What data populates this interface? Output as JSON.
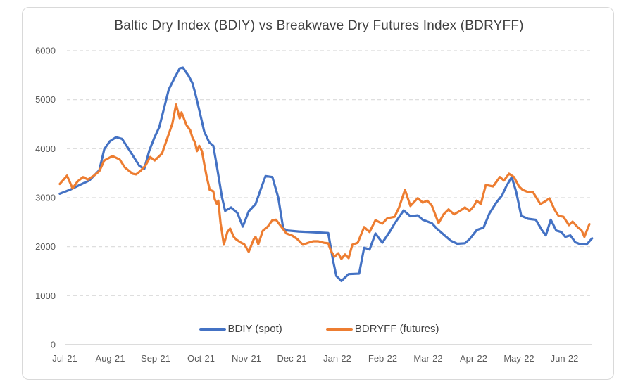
{
  "chart_data": {
    "type": "line",
    "title": "Baltic Dry Index (BDIY) vs Breakwave Dry Futures Index (BDRYFF)",
    "categories": [
      "Jul-21",
      "Aug-21",
      "Sep-21",
      "Oct-21",
      "Nov-21",
      "Dec-21",
      "Jan-22",
      "Feb-22",
      "Mar-22",
      "Apr-22",
      "May-22",
      "Jun-22"
    ],
    "x_unit": "months since Jul-2021 (fractional = weeks within month)",
    "ylim": [
      0,
      6000
    ],
    "yticks": [
      0,
      1000,
      2000,
      3000,
      4000,
      5000,
      6000
    ],
    "grid": "horizontal-dashed",
    "legend_position": "bottom-center",
    "series": [
      {
        "name": "BDIY (spot)",
        "color": "#4472C4",
        "points": [
          [
            -0.11,
            3080
          ],
          [
            0.11,
            3160
          ],
          [
            0.33,
            3260
          ],
          [
            0.54,
            3350
          ],
          [
            0.76,
            3560
          ],
          [
            0.87,
            3990
          ],
          [
            0.99,
            4150
          ],
          [
            1.13,
            4235
          ],
          [
            1.26,
            4200
          ],
          [
            1.43,
            3960
          ],
          [
            1.64,
            3650
          ],
          [
            1.75,
            3590
          ],
          [
            1.86,
            3960
          ],
          [
            1.97,
            4220
          ],
          [
            2.08,
            4440
          ],
          [
            2.29,
            5210
          ],
          [
            2.42,
            5450
          ],
          [
            2.53,
            5640
          ],
          [
            2.6,
            5655
          ],
          [
            2.73,
            5480
          ],
          [
            2.81,
            5340
          ],
          [
            2.87,
            5140
          ],
          [
            2.96,
            4790
          ],
          [
            3.07,
            4350
          ],
          [
            3.18,
            4130
          ],
          [
            3.27,
            4060
          ],
          [
            3.35,
            3630
          ],
          [
            3.46,
            3010
          ],
          [
            3.53,
            2730
          ],
          [
            3.66,
            2800
          ],
          [
            3.8,
            2690
          ],
          [
            3.92,
            2410
          ],
          [
            4.05,
            2720
          ],
          [
            4.2,
            2870
          ],
          [
            4.31,
            3160
          ],
          [
            4.42,
            3440
          ],
          [
            4.57,
            3420
          ],
          [
            4.7,
            3000
          ],
          [
            4.81,
            2370
          ],
          [
            4.91,
            2330
          ],
          [
            5.15,
            2310
          ],
          [
            5.36,
            2300
          ],
          [
            5.58,
            2290
          ],
          [
            5.8,
            2280
          ],
          [
            5.91,
            1700
          ],
          [
            5.98,
            1400
          ],
          [
            6.09,
            1300
          ],
          [
            6.25,
            1440
          ],
          [
            6.48,
            1450
          ],
          [
            6.59,
            1980
          ],
          [
            6.71,
            1940
          ],
          [
            6.84,
            2270
          ],
          [
            6.99,
            2080
          ],
          [
            7.15,
            2300
          ],
          [
            7.26,
            2470
          ],
          [
            7.46,
            2740
          ],
          [
            7.61,
            2620
          ],
          [
            7.77,
            2640
          ],
          [
            7.88,
            2550
          ],
          [
            8.08,
            2480
          ],
          [
            8.19,
            2370
          ],
          [
            8.34,
            2250
          ],
          [
            8.5,
            2120
          ],
          [
            8.64,
            2060
          ],
          [
            8.81,
            2070
          ],
          [
            8.91,
            2150
          ],
          [
            9.07,
            2340
          ],
          [
            9.22,
            2390
          ],
          [
            9.35,
            2680
          ],
          [
            9.5,
            2900
          ],
          [
            9.63,
            3050
          ],
          [
            9.72,
            3230
          ],
          [
            9.84,
            3420
          ],
          [
            9.94,
            3115
          ],
          [
            10.05,
            2630
          ],
          [
            10.2,
            2570
          ],
          [
            10.37,
            2550
          ],
          [
            10.51,
            2330
          ],
          [
            10.59,
            2230
          ],
          [
            10.7,
            2550
          ],
          [
            10.82,
            2330
          ],
          [
            10.93,
            2300
          ],
          [
            11.02,
            2200
          ],
          [
            11.13,
            2230
          ],
          [
            11.24,
            2090
          ],
          [
            11.35,
            2050
          ],
          [
            11.49,
            2045
          ],
          [
            11.61,
            2170
          ]
        ]
      },
      {
        "name": "BDRYFF (futures)",
        "color": "#ED7D31",
        "points": [
          [
            -0.11,
            3280
          ],
          [
            0.05,
            3450
          ],
          [
            0.17,
            3190
          ],
          [
            0.28,
            3330
          ],
          [
            0.4,
            3420
          ],
          [
            0.51,
            3370
          ],
          [
            0.64,
            3450
          ],
          [
            0.76,
            3540
          ],
          [
            0.87,
            3760
          ],
          [
            1.05,
            3850
          ],
          [
            1.21,
            3780
          ],
          [
            1.32,
            3620
          ],
          [
            1.49,
            3490
          ],
          [
            1.57,
            3475
          ],
          [
            1.67,
            3550
          ],
          [
            1.78,
            3660
          ],
          [
            1.88,
            3830
          ],
          [
            1.98,
            3760
          ],
          [
            2.14,
            3900
          ],
          [
            2.29,
            4300
          ],
          [
            2.37,
            4520
          ],
          [
            2.45,
            4900
          ],
          [
            2.53,
            4620
          ],
          [
            2.57,
            4740
          ],
          [
            2.68,
            4480
          ],
          [
            2.76,
            4380
          ],
          [
            2.81,
            4230
          ],
          [
            2.87,
            4120
          ],
          [
            2.91,
            3950
          ],
          [
            2.96,
            4060
          ],
          [
            3.02,
            3950
          ],
          [
            3.07,
            3690
          ],
          [
            3.12,
            3450
          ],
          [
            3.19,
            3160
          ],
          [
            3.27,
            3130
          ],
          [
            3.3,
            2970
          ],
          [
            3.35,
            2870
          ],
          [
            3.38,
            2940
          ],
          [
            3.43,
            2480
          ],
          [
            3.46,
            2300
          ],
          [
            3.5,
            2040
          ],
          [
            3.58,
            2300
          ],
          [
            3.64,
            2370
          ],
          [
            3.72,
            2200
          ],
          [
            3.77,
            2150
          ],
          [
            3.88,
            2080
          ],
          [
            3.95,
            2050
          ],
          [
            4.05,
            1895
          ],
          [
            4.16,
            2150
          ],
          [
            4.2,
            2200
          ],
          [
            4.26,
            2050
          ],
          [
            4.36,
            2325
          ],
          [
            4.47,
            2410
          ],
          [
            4.57,
            2540
          ],
          [
            4.65,
            2550
          ],
          [
            4.88,
            2270
          ],
          [
            5.01,
            2225
          ],
          [
            5.12,
            2155
          ],
          [
            5.24,
            2040
          ],
          [
            5.36,
            2080
          ],
          [
            5.47,
            2110
          ],
          [
            5.58,
            2110
          ],
          [
            5.7,
            2080
          ],
          [
            5.8,
            2070
          ],
          [
            5.86,
            1910
          ],
          [
            5.94,
            1795
          ],
          [
            6.02,
            1865
          ],
          [
            6.09,
            1750
          ],
          [
            6.17,
            1840
          ],
          [
            6.25,
            1765
          ],
          [
            6.33,
            2040
          ],
          [
            6.45,
            2080
          ],
          [
            6.59,
            2400
          ],
          [
            6.71,
            2300
          ],
          [
            6.84,
            2540
          ],
          [
            6.99,
            2470
          ],
          [
            7.1,
            2580
          ],
          [
            7.26,
            2610
          ],
          [
            7.36,
            2800
          ],
          [
            7.49,
            3160
          ],
          [
            7.61,
            2830
          ],
          [
            7.77,
            2990
          ],
          [
            7.88,
            2900
          ],
          [
            7.98,
            2940
          ],
          [
            8.08,
            2840
          ],
          [
            8.23,
            2480
          ],
          [
            8.34,
            2660
          ],
          [
            8.45,
            2760
          ],
          [
            8.57,
            2660
          ],
          [
            8.7,
            2730
          ],
          [
            8.81,
            2800
          ],
          [
            8.91,
            2730
          ],
          [
            9.01,
            2830
          ],
          [
            9.07,
            2940
          ],
          [
            9.16,
            2870
          ],
          [
            9.27,
            3260
          ],
          [
            9.43,
            3230
          ],
          [
            9.58,
            3420
          ],
          [
            9.67,
            3350
          ],
          [
            9.78,
            3490
          ],
          [
            9.89,
            3420
          ],
          [
            10.0,
            3230
          ],
          [
            10.08,
            3160
          ],
          [
            10.2,
            3115
          ],
          [
            10.31,
            3110
          ],
          [
            10.47,
            2870
          ],
          [
            10.56,
            2915
          ],
          [
            10.67,
            2985
          ],
          [
            10.78,
            2760
          ],
          [
            10.87,
            2630
          ],
          [
            10.98,
            2610
          ],
          [
            11.1,
            2440
          ],
          [
            11.18,
            2510
          ],
          [
            11.29,
            2400
          ],
          [
            11.38,
            2330
          ],
          [
            11.44,
            2200
          ],
          [
            11.55,
            2460
          ]
        ]
      }
    ],
    "colors": {
      "grid": "#d9d9d9",
      "axis_line": "#c6c6c6",
      "tick_text": "#595959",
      "title_text": "#404040"
    }
  },
  "legend": {
    "items": [
      {
        "label": "BDIY (spot)",
        "color": "#4472C4"
      },
      {
        "label": "BDRYFF (futures)",
        "color": "#ED7D31"
      }
    ]
  }
}
